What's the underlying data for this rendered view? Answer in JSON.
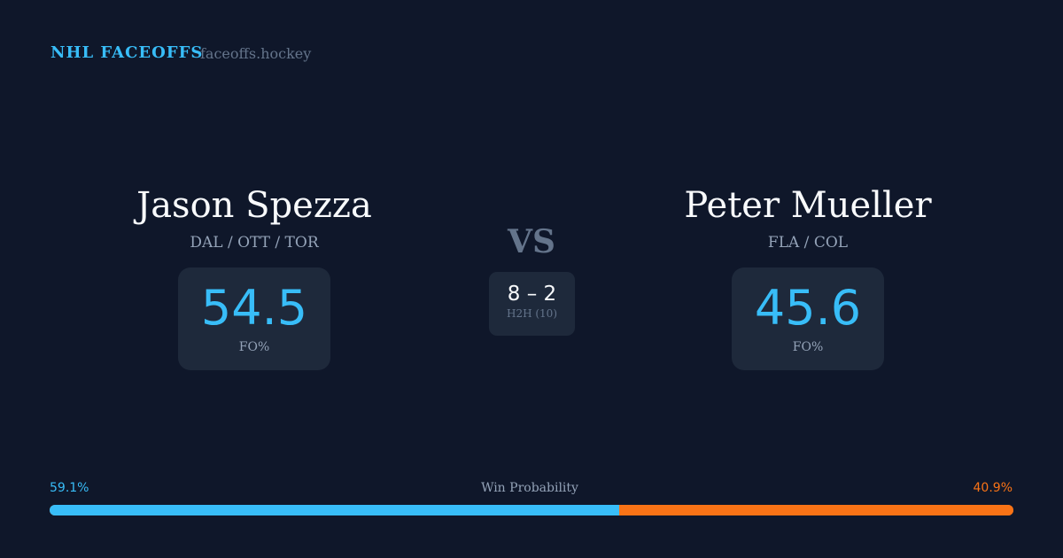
{
  "header": {
    "brand": "NHL FACEOFFS",
    "site": "faceoffs.hockey"
  },
  "player1": {
    "name": "Jason Spezza",
    "teams": "DAL / OTT / TOR",
    "fo_pct": "54.5",
    "fo_label": "FO%"
  },
  "player2": {
    "name": "Peter Mueller",
    "teams": "FLA / COL",
    "fo_pct": "45.6",
    "fo_label": "FO%"
  },
  "vs": "VS",
  "h2h": {
    "score": "8 – 2",
    "label": "H2H (10)"
  },
  "win_probability": {
    "label": "Win Probability",
    "left": "59.1%",
    "right": "40.9%",
    "left_value": 59.1,
    "left_color": "#38bdf8",
    "right_color": "#f97316"
  }
}
